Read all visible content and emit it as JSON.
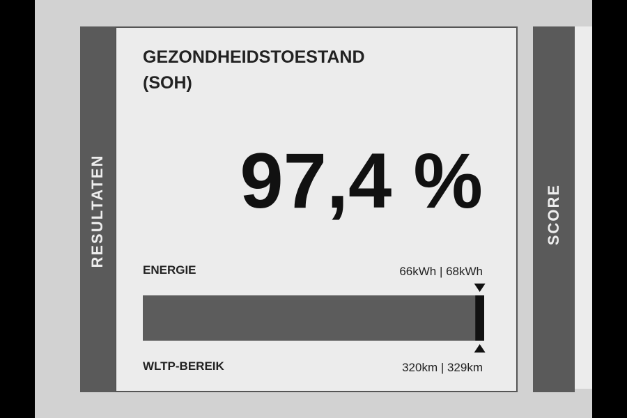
{
  "side_label": "RESULTATEN",
  "title": "GEZONDHEIDSTOESTAND",
  "subtitle": "(SOH)",
  "soh": {
    "value": 97.4,
    "label": "97,4 %"
  },
  "energy": {
    "label": "ENERGIE",
    "values": "66kWh | 68kWh"
  },
  "range": {
    "label": "WLTP-BEREIK",
    "values": "320km | 329km"
  },
  "next_card_label": "SCORE"
}
